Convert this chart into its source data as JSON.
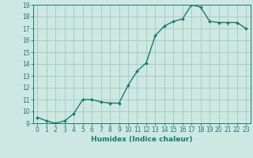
{
  "xlabel": "Humidex (Indice chaleur)",
  "x_values": [
    0,
    1,
    2,
    3,
    4,
    5,
    6,
    7,
    8,
    9,
    10,
    11,
    12,
    13,
    14,
    15,
    16,
    17,
    18,
    19,
    20,
    21,
    22,
    23
  ],
  "y_values": [
    9.5,
    9.2,
    9.0,
    9.2,
    9.8,
    11.0,
    11.0,
    10.8,
    10.7,
    10.7,
    12.2,
    13.4,
    14.1,
    16.4,
    17.2,
    17.6,
    17.8,
    19.0,
    18.8,
    17.6,
    17.5,
    17.5,
    17.5,
    17.0
  ],
  "line_color": "#1a7a6e",
  "marker": "D",
  "marker_size": 2.0,
  "background_color": "#cde8e2",
  "grid_color": "#a0c8bf",
  "ylim": [
    9,
    19
  ],
  "xlim_min": -0.5,
  "xlim_max": 23.5,
  "yticks": [
    9,
    10,
    11,
    12,
    13,
    14,
    15,
    16,
    17,
    18,
    19
  ],
  "xticks": [
    0,
    1,
    2,
    3,
    4,
    5,
    6,
    7,
    8,
    9,
    10,
    11,
    12,
    13,
    14,
    15,
    16,
    17,
    18,
    19,
    20,
    21,
    22,
    23
  ],
  "tick_fontsize": 5.5,
  "xlabel_fontsize": 6.5,
  "line_width": 1.0
}
